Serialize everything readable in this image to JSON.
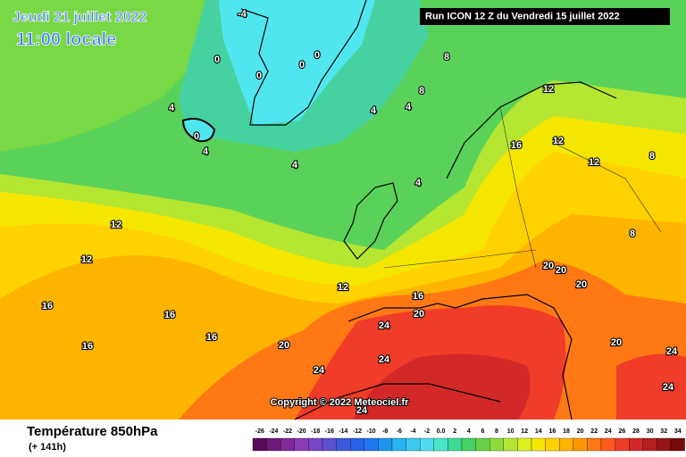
{
  "header": {
    "date": "Jeudi 21 juillet 2022",
    "time": "11:00 locale",
    "run": "Run ICON 12 Z du Vendredi 15 juillet 2022"
  },
  "map": {
    "copyright": "Copyright © 2022 Meteociel.fr",
    "contour_labels": [
      "-4",
      "0",
      "0",
      "0",
      "0",
      "0",
      "4",
      "4",
      "4",
      "4",
      "4",
      "4",
      "8",
      "8",
      "8",
      "8",
      "12",
      "12",
      "12",
      "12",
      "12",
      "12",
      "16",
      "16",
      "16",
      "16",
      "16",
      "16",
      "20",
      "20",
      "20",
      "20",
      "20",
      "20",
      "24",
      "24",
      "24",
      "24",
      "24",
      "24"
    ]
  },
  "footer": {
    "title": "Température 850hPa",
    "lead": "(+ 141h)"
  },
  "legend": {
    "labels": [
      "-26",
      "-24",
      "-22",
      "-20",
      "-18",
      "-16",
      "-14",
      "-12",
      "-10",
      "-8",
      "-6",
      "-4",
      "-2",
      "0.0",
      "2",
      "4",
      "6",
      "8",
      "10",
      "12",
      "14",
      "16",
      "18",
      "20",
      "22",
      "24",
      "26",
      "28",
      "30",
      "32",
      "34"
    ],
    "colors": [
      "#5a0a5a",
      "#6e1a7a",
      "#82289a",
      "#8c3cb4",
      "#7846c8",
      "#5a50d2",
      "#3c5adc",
      "#2864e6",
      "#1e78f0",
      "#1e96f0",
      "#28b4f0",
      "#3cc8f0",
      "#50dcf0",
      "#46e6c8",
      "#3cdc96",
      "#46d264",
      "#64d246",
      "#8cdc3c",
      "#b4e632",
      "#dcf01e",
      "#f5e600",
      "#ffd200",
      "#ffb400",
      "#ff9600",
      "#ff7814",
      "#ff5a1e",
      "#f03c28",
      "#d22828",
      "#b41e1e",
      "#961414",
      "#780a0a"
    ]
  }
}
